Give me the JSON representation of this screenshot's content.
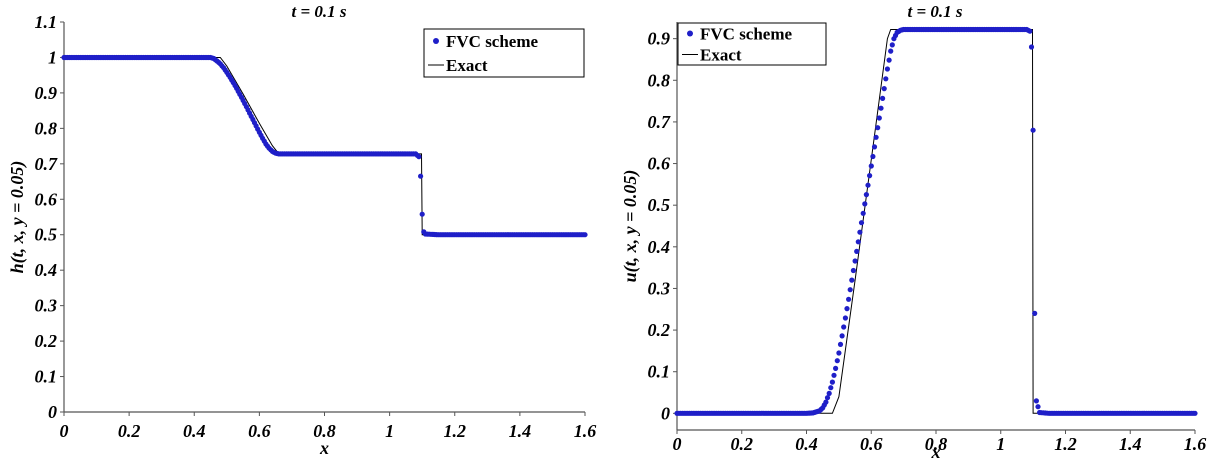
{
  "chart_data": [
    {
      "type": "scatter",
      "title": "t = 0.1 s",
      "xlabel": "x",
      "ylabel": "h(t, x, y = 0.05)",
      "xlim": [
        0,
        1.6
      ],
      "ylim": [
        0,
        1.1
      ],
      "xticks": [
        0,
        0.2,
        0.4,
        0.6,
        0.8,
        1,
        1.2,
        1.4,
        1.6
      ],
      "xtick_labels": [
        "0",
        "0.2",
        "0.4",
        "0.6",
        "0.8",
        "1",
        "1.2",
        "1.4",
        "1.6"
      ],
      "yticks": [
        0,
        0.1,
        0.2,
        0.3,
        0.4,
        0.5,
        0.6,
        0.7,
        0.8,
        0.9,
        1,
        1.1
      ],
      "ytick_labels": [
        "0",
        "0.1",
        "0.2",
        "0.3",
        "0.4",
        "0.5",
        "0.6",
        "0.7",
        "0.8",
        "0.9",
        "1",
        "1.1"
      ],
      "legend_position": "top-right",
      "series": [
        {
          "name": "FVC scheme",
          "kind": "markers",
          "color": "#1f1fc8",
          "points": [
            [
              0,
              1
            ],
            [
              0.05,
              1
            ],
            [
              0.1,
              1
            ],
            [
              0.15,
              1
            ],
            [
              0.2,
              1
            ],
            [
              0.25,
              1
            ],
            [
              0.3,
              1
            ],
            [
              0.35,
              1
            ],
            [
              0.4,
              1
            ],
            [
              0.45,
              1
            ],
            [
              0.46,
              0.997
            ],
            [
              0.47,
              0.99
            ],
            [
              0.48,
              0.982
            ],
            [
              0.49,
              0.971
            ],
            [
              0.5,
              0.958
            ],
            [
              0.51,
              0.944
            ],
            [
              0.52,
              0.929
            ],
            [
              0.53,
              0.913
            ],
            [
              0.54,
              0.896
            ],
            [
              0.55,
              0.879
            ],
            [
              0.56,
              0.861
            ],
            [
              0.57,
              0.843
            ],
            [
              0.58,
              0.825
            ],
            [
              0.59,
              0.807
            ],
            [
              0.6,
              0.789
            ],
            [
              0.61,
              0.772
            ],
            [
              0.62,
              0.756
            ],
            [
              0.63,
              0.744
            ],
            [
              0.64,
              0.735
            ],
            [
              0.65,
              0.73
            ],
            [
              0.66,
              0.728
            ],
            [
              0.7,
              0.728
            ],
            [
              0.75,
              0.728
            ],
            [
              0.8,
              0.728
            ],
            [
              0.85,
              0.728
            ],
            [
              0.9,
              0.728
            ],
            [
              0.95,
              0.728
            ],
            [
              1.0,
              0.728
            ],
            [
              1.05,
              0.728
            ],
            [
              1.08,
              0.728
            ],
            [
              1.09,
              0.72
            ],
            [
              1.095,
              0.665
            ],
            [
              1.1,
              0.558
            ],
            [
              1.105,
              0.508
            ],
            [
              1.11,
              0.502
            ],
            [
              1.15,
              0.5
            ],
            [
              1.2,
              0.5
            ],
            [
              1.25,
              0.5
            ],
            [
              1.3,
              0.5
            ],
            [
              1.35,
              0.5
            ],
            [
              1.4,
              0.5
            ],
            [
              1.45,
              0.5
            ],
            [
              1.5,
              0.5
            ],
            [
              1.55,
              0.5
            ],
            [
              1.6,
              0.5
            ]
          ]
        },
        {
          "name": "Exact",
          "kind": "line",
          "color": "#000000",
          "points": [
            [
              0,
              1
            ],
            [
              0.48,
              1
            ],
            [
              0.5,
              0.976
            ],
            [
              0.55,
              0.897
            ],
            [
              0.6,
              0.814
            ],
            [
              0.64,
              0.751
            ],
            [
              0.66,
              0.728
            ],
            [
              1.098,
              0.728
            ],
            [
              1.1,
              0.5
            ],
            [
              1.6,
              0.5
            ]
          ]
        }
      ]
    },
    {
      "type": "scatter",
      "title": "t = 0.1 s",
      "xlabel": "x",
      "ylabel": "u(t, x, y = 0.05)",
      "xlim": [
        0,
        1.6
      ],
      "ylim": [
        -0.04,
        0.94
      ],
      "xticks": [
        0,
        0.2,
        0.4,
        0.6,
        0.8,
        1,
        1.2,
        1.4,
        1.6
      ],
      "xtick_labels": [
        "0",
        "0.2",
        "0.4",
        "0.6",
        "0.8",
        "1",
        "1.2",
        "1.4",
        "1.6"
      ],
      "yticks": [
        0,
        0.1,
        0.2,
        0.3,
        0.4,
        0.5,
        0.6,
        0.7,
        0.8,
        0.9
      ],
      "ytick_labels": [
        "0",
        "0.1",
        "0.2",
        "0.3",
        "0.4",
        "0.5",
        "0.6",
        "0.7",
        "0.8",
        "0.9"
      ],
      "legend_position": "top-left",
      "series": [
        {
          "name": "FVC scheme",
          "kind": "markers",
          "color": "#1f1fc8",
          "points": [
            [
              0,
              0
            ],
            [
              0.05,
              0
            ],
            [
              0.1,
              0
            ],
            [
              0.15,
              0
            ],
            [
              0.2,
              0
            ],
            [
              0.25,
              0
            ],
            [
              0.3,
              0
            ],
            [
              0.35,
              0
            ],
            [
              0.4,
              0
            ],
            [
              0.42,
              0.001
            ],
            [
              0.44,
              0.006
            ],
            [
              0.45,
              0.013
            ],
            [
              0.46,
              0.027
            ],
            [
              0.47,
              0.048
            ],
            [
              0.48,
              0.075
            ],
            [
              0.49,
              0.108
            ],
            [
              0.5,
              0.145
            ],
            [
              0.51,
              0.186
            ],
            [
              0.52,
              0.229
            ],
            [
              0.53,
              0.274
            ],
            [
              0.54,
              0.32
            ],
            [
              0.55,
              0.366
            ],
            [
              0.56,
              0.412
            ],
            [
              0.57,
              0.458
            ],
            [
              0.58,
              0.503
            ],
            [
              0.59,
              0.548
            ],
            [
              0.6,
              0.594
            ],
            [
              0.61,
              0.64
            ],
            [
              0.62,
              0.686
            ],
            [
              0.63,
              0.733
            ],
            [
              0.64,
              0.78
            ],
            [
              0.65,
              0.827
            ],
            [
              0.66,
              0.87
            ],
            [
              0.67,
              0.9
            ],
            [
              0.68,
              0.915
            ],
            [
              0.69,
              0.92
            ],
            [
              0.7,
              0.922
            ],
            [
              0.75,
              0.922
            ],
            [
              0.8,
              0.922
            ],
            [
              0.85,
              0.922
            ],
            [
              0.9,
              0.922
            ],
            [
              0.95,
              0.922
            ],
            [
              1.0,
              0.922
            ],
            [
              1.05,
              0.922
            ],
            [
              1.08,
              0.922
            ],
            [
              1.09,
              0.918
            ],
            [
              1.095,
              0.88
            ],
            [
              1.1,
              0.68
            ],
            [
              1.105,
              0.24
            ],
            [
              1.11,
              0.03
            ],
            [
              1.12,
              0.002
            ],
            [
              1.15,
              0
            ],
            [
              1.2,
              0
            ],
            [
              1.25,
              0
            ],
            [
              1.3,
              0
            ],
            [
              1.35,
              0
            ],
            [
              1.4,
              0
            ],
            [
              1.45,
              0
            ],
            [
              1.5,
              0
            ],
            [
              1.55,
              0
            ],
            [
              1.6,
              0
            ]
          ]
        },
        {
          "name": "Exact",
          "kind": "line",
          "color": "#000000",
          "points": [
            [
              0,
              0
            ],
            [
              0.48,
              0
            ],
            [
              0.5,
              0.04
            ],
            [
              0.55,
              0.32
            ],
            [
              0.6,
              0.61
            ],
            [
              0.65,
              0.9
            ],
            [
              0.66,
              0.922
            ],
            [
              1.098,
              0.922
            ],
            [
              1.1,
              0
            ],
            [
              1.6,
              0
            ]
          ]
        }
      ]
    }
  ]
}
